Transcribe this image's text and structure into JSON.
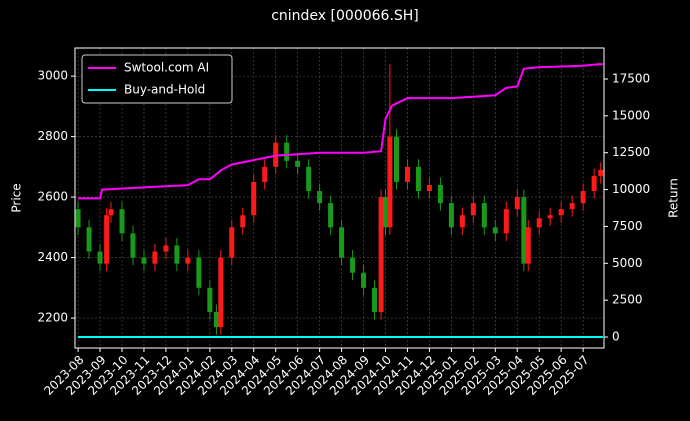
{
  "chart_data": {
    "type": "candlestick",
    "title": "cnindex [000066.SH]",
    "y_label": "Price",
    "y2_label": "Return",
    "x": [
      0,
      0.5,
      1,
      1.3,
      1.5,
      2,
      2.5,
      3,
      3.5,
      4,
      4.5,
      5,
      5.5,
      6,
      6.3,
      6.5,
      7,
      7.5,
      8,
      8.5,
      9,
      9.5,
      10,
      10.5,
      11,
      11.5,
      12,
      12.5,
      13,
      13.5,
      13.8,
      14,
      14.2,
      14.5,
      15,
      15.5,
      16,
      16.5,
      17,
      17.5,
      18,
      18.5,
      19,
      19.5,
      20,
      20.3,
      20.5,
      21,
      21.5,
      22,
      22.5,
      23,
      23.5,
      23.8
    ],
    "open": [
      2560,
      2500,
      2420,
      2380,
      2540,
      2560,
      2480,
      2400,
      2380,
      2420,
      2440,
      2380,
      2400,
      2300,
      2220,
      2170,
      2400,
      2500,
      2540,
      2650,
      2700,
      2780,
      2720,
      2700,
      2620,
      2580,
      2500,
      2400,
      2350,
      2300,
      2220,
      2600,
      2500,
      2800,
      2650,
      2700,
      2620,
      2640,
      2580,
      2500,
      2540,
      2580,
      2500,
      2480,
      2560,
      2600,
      2380,
      2500,
      2530,
      2540,
      2560,
      2580,
      2620,
      2670
    ],
    "high": [
      2585,
      2525,
      2445,
      2565,
      2585,
      2585,
      2505,
      2425,
      2445,
      2465,
      2465,
      2425,
      2425,
      2325,
      2245,
      2425,
      2525,
      2565,
      2675,
      2725,
      2805,
      2805,
      2745,
      2725,
      2645,
      2605,
      2525,
      2425,
      2375,
      2325,
      2625,
      2625,
      3040,
      2825,
      2725,
      2725,
      2665,
      2665,
      2605,
      2565,
      2605,
      2605,
      2525,
      2585,
      2625,
      2625,
      2525,
      2555,
      2565,
      2585,
      2605,
      2645,
      2695,
      2715
    ],
    "low": [
      2475,
      2395,
      2355,
      2355,
      2515,
      2455,
      2375,
      2355,
      2355,
      2395,
      2355,
      2355,
      2275,
      2195,
      2145,
      2145,
      2375,
      2475,
      2515,
      2625,
      2675,
      2695,
      2675,
      2595,
      2555,
      2475,
      2375,
      2325,
      2275,
      2195,
      2195,
      2475,
      2475,
      2625,
      2625,
      2595,
      2595,
      2555,
      2475,
      2475,
      2515,
      2475,
      2455,
      2455,
      2535,
      2355,
      2355,
      2475,
      2505,
      2515,
      2535,
      2555,
      2595,
      2645
    ],
    "close": [
      2500,
      2420,
      2380,
      2540,
      2560,
      2480,
      2400,
      2380,
      2420,
      2440,
      2380,
      2400,
      2300,
      2220,
      2170,
      2400,
      2500,
      2540,
      2650,
      2700,
      2780,
      2720,
      2700,
      2620,
      2580,
      2500,
      2400,
      2350,
      2300,
      2220,
      2600,
      2500,
      2800,
      2650,
      2700,
      2620,
      2640,
      2580,
      2500,
      2540,
      2580,
      2500,
      2480,
      2560,
      2600,
      2380,
      2500,
      2530,
      2540,
      2560,
      2580,
      2620,
      2670,
      2690
    ],
    "up_color": "#ff1a1a",
    "down_color": "#1a9a1a",
    "series": [
      {
        "name": "Swtool.com AI",
        "color": "#ff00ff",
        "axis": "y2",
        "x": [
          0,
          1,
          1.1,
          5,
          5.5,
          6,
          6.5,
          7,
          8,
          9,
          10,
          11,
          13,
          13.8,
          14,
          14.3,
          15,
          17,
          18,
          19,
          19.5,
          20,
          20.3,
          21,
          23,
          23.7,
          23.9
        ],
        "values": [
          9400,
          9400,
          10000,
          10300,
          10700,
          10700,
          11300,
          11700,
          12000,
          12300,
          12400,
          12500,
          12500,
          12600,
          14800,
          15700,
          16200,
          16200,
          16300,
          16400,
          16900,
          17000,
          18200,
          18300,
          18400,
          18500,
          18500
        ]
      },
      {
        "name": "Buy-and-Hold",
        "color": "#00ffff",
        "axis": "y2",
        "x": [
          0,
          23.9
        ],
        "values": [
          0,
          0
        ]
      }
    ],
    "xlim": [
      -0.14,
      23.95
    ],
    "xticks": [
      {
        "value": 0,
        "label": "2023-08"
      },
      {
        "value": 1,
        "label": "2023-09"
      },
      {
        "value": 2,
        "label": "2023-10"
      },
      {
        "value": 3,
        "label": "2023-11"
      },
      {
        "value": 4,
        "label": "2023-12"
      },
      {
        "value": 5,
        "label": "2024-01"
      },
      {
        "value": 6,
        "label": "2024-02"
      },
      {
        "value": 7,
        "label": "2024-03"
      },
      {
        "value": 8,
        "label": "2024-04"
      },
      {
        "value": 9,
        "label": "2024-05"
      },
      {
        "value": 10,
        "label": "2024-06"
      },
      {
        "value": 11,
        "label": "2024-07"
      },
      {
        "value": 12,
        "label": "2024-08"
      },
      {
        "value": 13,
        "label": "2024-09"
      },
      {
        "value": 14,
        "label": "2024-10"
      },
      {
        "value": 15,
        "label": "2024-11"
      },
      {
        "value": 16,
        "label": "2024-12"
      },
      {
        "value": 17,
        "label": "2025-01"
      },
      {
        "value": 18,
        "label": "2025-02"
      },
      {
        "value": 19,
        "label": "2025-03"
      },
      {
        "value": 20,
        "label": "2025-04"
      },
      {
        "value": 21,
        "label": "2025-05"
      },
      {
        "value": 22,
        "label": "2025-06"
      },
      {
        "value": 23,
        "label": "2025-07"
      }
    ],
    "ylim": [
      2101,
      3093
    ],
    "yticks": [
      2200,
      2400,
      2600,
      2800,
      3000
    ],
    "y2lim": [
      -746,
      19603
    ],
    "y2ticks": [
      0,
      2500,
      5000,
      7500,
      10000,
      12500,
      15000,
      17500
    ],
    "grid": true,
    "legend": "upper left"
  }
}
